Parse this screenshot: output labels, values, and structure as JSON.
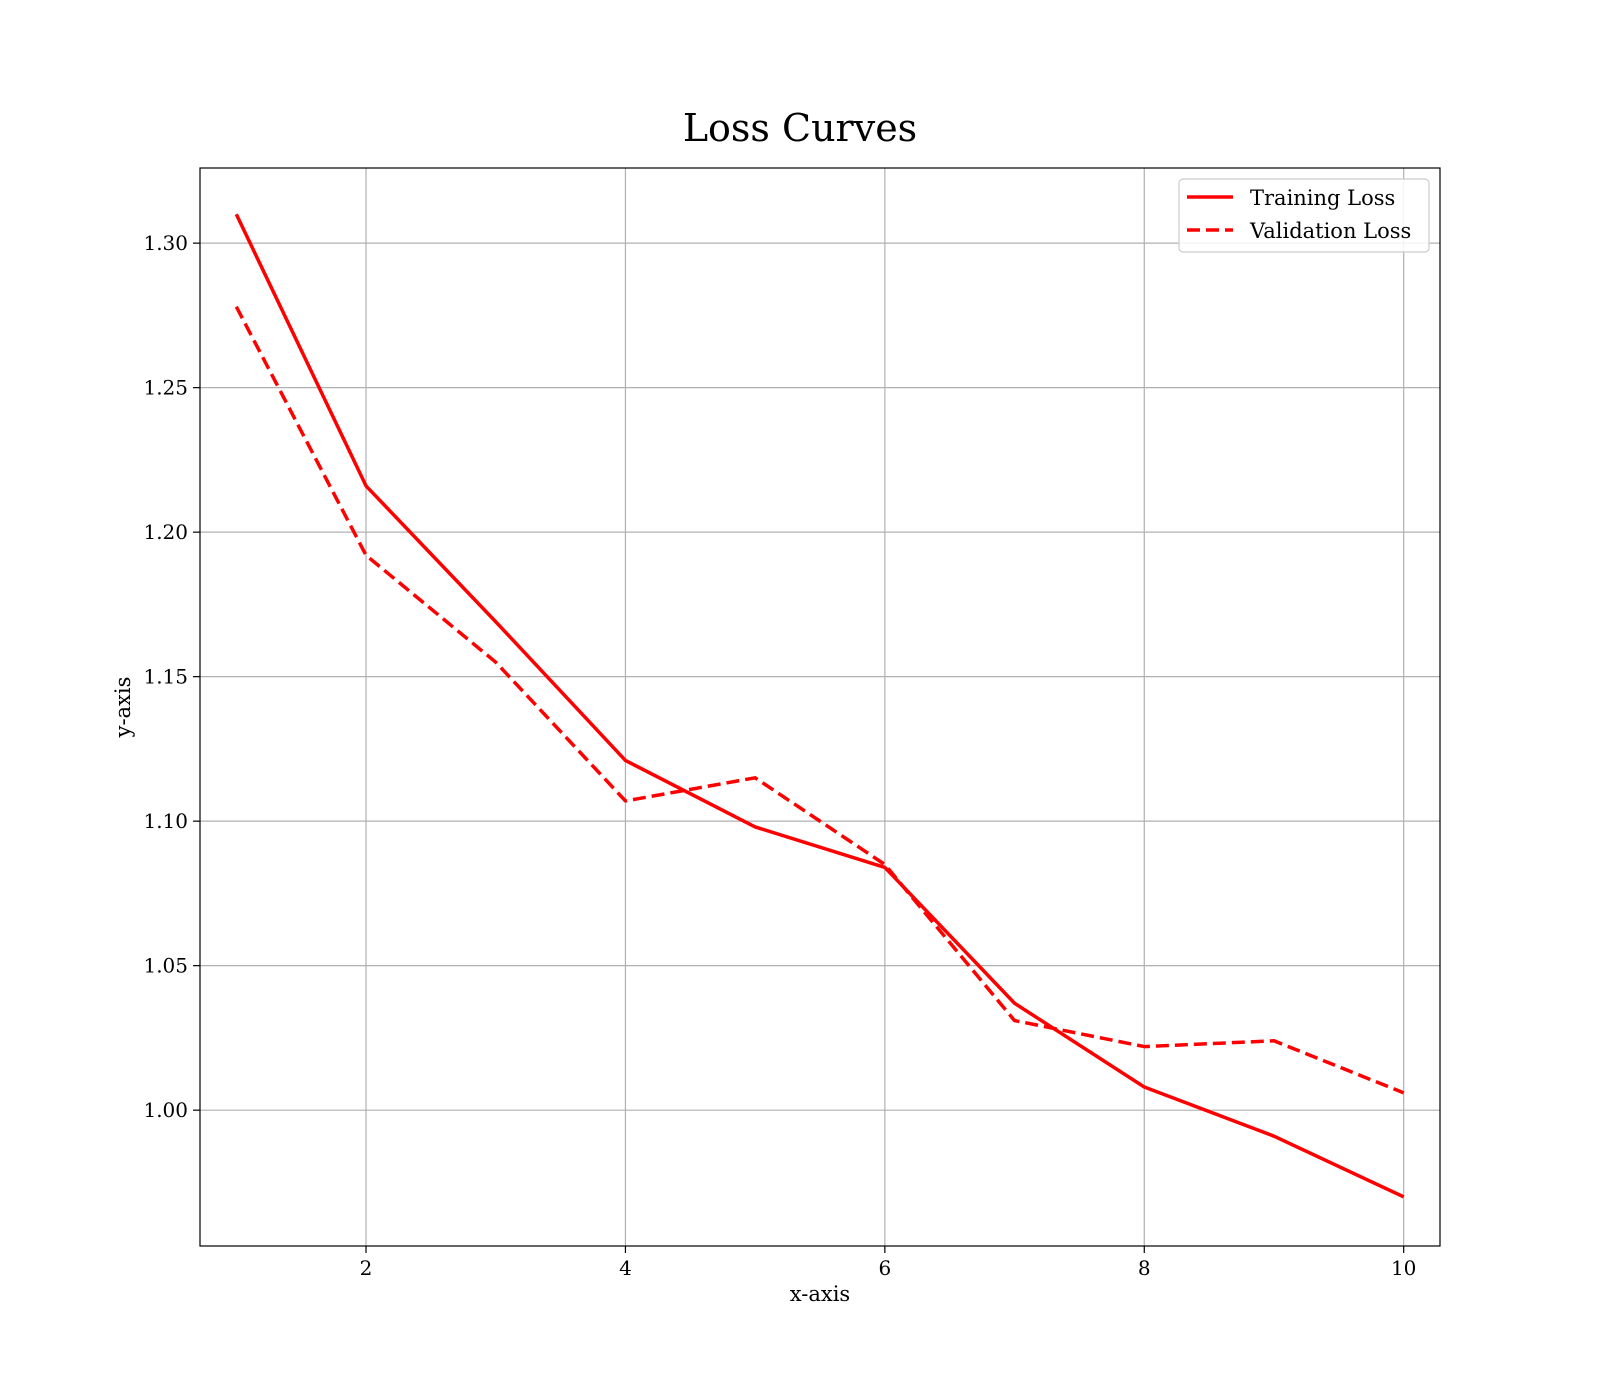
{
  "chart_data": {
    "type": "line",
    "title": "Loss Curves",
    "xlabel": "x-axis",
    "ylabel": "y-axis",
    "xlim": [
      0.72,
      10.28
    ],
    "ylim": [
      0.953,
      1.326
    ],
    "xticks": [
      2,
      4,
      6,
      8,
      10
    ],
    "xtick_labels": [
      "2",
      "4",
      "6",
      "8",
      "10"
    ],
    "yticks": [
      1.0,
      1.05,
      1.1,
      1.15,
      1.2,
      1.25,
      1.3
    ],
    "ytick_labels": [
      "1.00",
      "1.05",
      "1.10",
      "1.15",
      "1.20",
      "1.25",
      "1.30"
    ],
    "grid": true,
    "legend_position": "top-right",
    "x": [
      1,
      2,
      3,
      4,
      5,
      6,
      7,
      8,
      9,
      10
    ],
    "series": [
      {
        "name": "Training Loss",
        "style": "solid",
        "color": "#ff0000",
        "values": [
          1.31,
          1.216,
          1.169,
          1.121,
          1.098,
          1.084,
          1.037,
          1.008,
          0.991,
          0.97
        ]
      },
      {
        "name": "Validation Loss",
        "style": "dashed",
        "color": "#ff0000",
        "values": [
          1.278,
          1.192,
          1.155,
          1.107,
          1.115,
          1.085,
          1.031,
          1.022,
          1.024,
          1.006
        ]
      }
    ]
  }
}
